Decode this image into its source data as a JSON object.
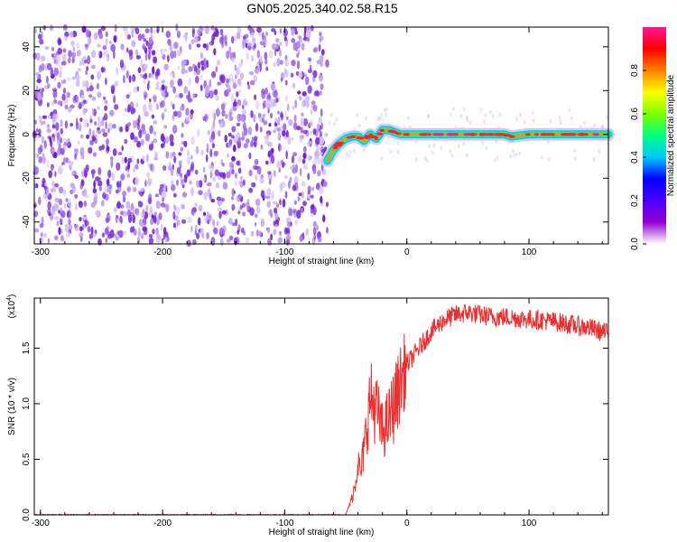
{
  "title": "GN05.2025.340.02.58.R15",
  "chart_data": [
    {
      "type": "heatmap",
      "xlabel": "Height of straight line (km)",
      "ylabel": "Frequency (Hz)",
      "xlim": [
        -305,
        165
      ],
      "ylim": [
        -50,
        49
      ],
      "xticks": [
        -300,
        -200,
        -100,
        0,
        100
      ],
      "xtick_labels": [
        "-300",
        "-200",
        "-100",
        "0",
        "100"
      ],
      "yticks": [
        -40,
        -20,
        0,
        20,
        40
      ],
      "ytick_labels": [
        "-40",
        "-20",
        "0",
        "20",
        "40"
      ],
      "noise_region_x": [
        -305,
        -65
      ],
      "signal_track": {
        "x": [
          -65,
          -60,
          -55,
          -50,
          -45,
          -40,
          -35,
          -30,
          -25,
          -20,
          -15,
          -10,
          -5,
          0,
          20,
          40,
          60,
          80,
          85,
          100,
          120,
          140,
          165
        ],
        "y": [
          -12,
          -7,
          -4,
          -2,
          -1,
          -1,
          -3,
          0,
          -2,
          2,
          2,
          1,
          0,
          0,
          0,
          0,
          0,
          0,
          -1,
          0,
          0,
          0,
          0
        ]
      },
      "colorbar": {
        "label": "Normalized spectral amplitude",
        "range": [
          0.0,
          1.0
        ],
        "ticks": [
          0.0,
          0.2,
          0.4,
          0.6,
          0.8
        ],
        "tick_labels": [
          "0.0",
          "0.2",
          "0.4",
          "0.6",
          "0.8"
        ],
        "colors": [
          "#ffffff",
          "#9400d3",
          "#4b00ff",
          "#0000ff",
          "#00c8ff",
          "#00ff80",
          "#7fff00",
          "#ffff00",
          "#ff8000",
          "#ff0000",
          "#ff1493"
        ]
      },
      "grid": false
    },
    {
      "type": "line",
      "xlabel": "Height of straight line (km)",
      "ylabel": "SNR (10 * v/v)",
      "yscale_label": "(x10",
      "yscale_exp": "4",
      "yscale_close": ")",
      "xlim": [
        -305,
        165
      ],
      "ylim": [
        0,
        1.95
      ],
      "xticks": [
        -300,
        -200,
        -100,
        0,
        100
      ],
      "xtick_labels": [
        "-300",
        "-200",
        "-100",
        "0",
        "100"
      ],
      "yticks": [
        0.0,
        0.5,
        1.0,
        1.5
      ],
      "ytick_labels": [
        "0.0",
        "0.5",
        "1.0",
        "1.5"
      ],
      "series": [
        {
          "color": "#e83030",
          "x": [
            -305,
            -100,
            -50,
            -45,
            -42,
            -40,
            -38,
            -35,
            -30,
            -25,
            -20,
            -15,
            -10,
            -5,
            0,
            10,
            20,
            30,
            40,
            50,
            60,
            70,
            80,
            90,
            100,
            110,
            120,
            130,
            140,
            150,
            165
          ],
          "y": [
            0.0,
            0.0,
            0.0,
            0.15,
            0.3,
            0.5,
            0.35,
            0.6,
            1.05,
            0.95,
            0.75,
            0.85,
            1.0,
            1.2,
            1.35,
            1.5,
            1.65,
            1.75,
            1.8,
            1.82,
            1.8,
            1.78,
            1.78,
            1.77,
            1.76,
            1.75,
            1.74,
            1.72,
            1.7,
            1.68,
            1.63
          ]
        }
      ],
      "grid": false
    }
  ]
}
